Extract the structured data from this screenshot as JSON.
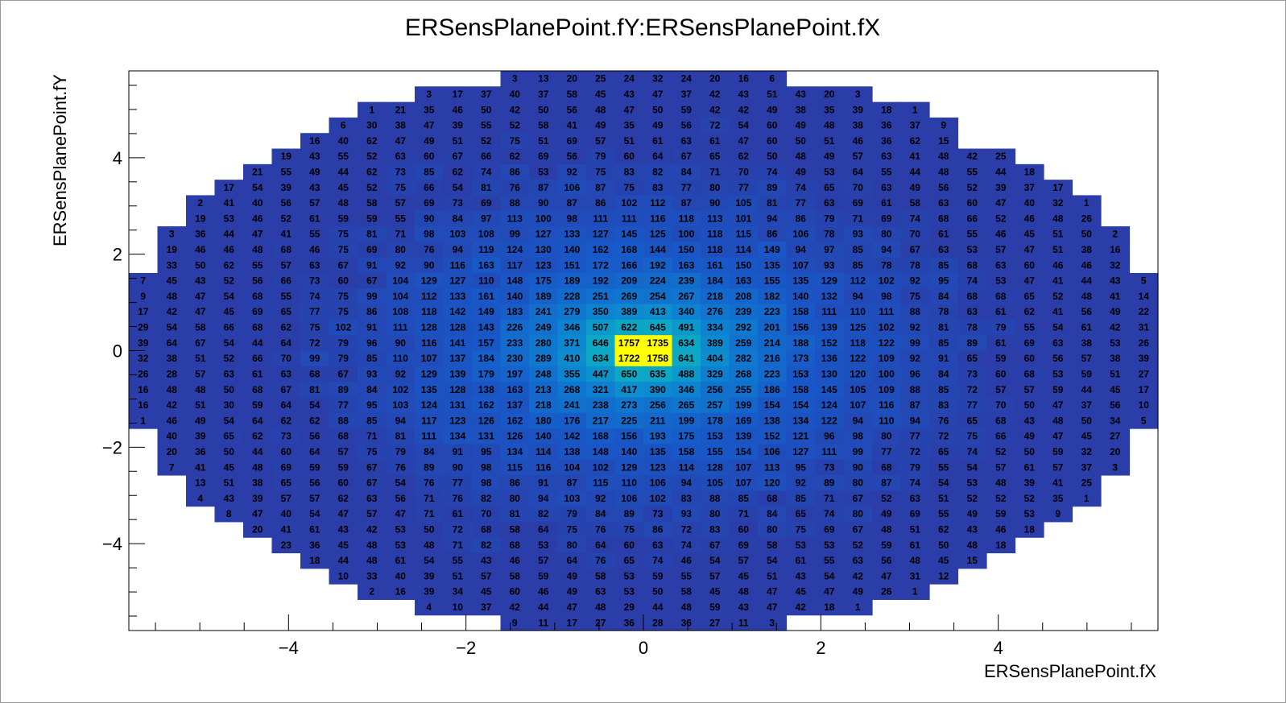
{
  "chart_data": {
    "type": "heatmap",
    "title": "ERSensPlanePoint.fY:ERSensPlanePoint.fX",
    "xlabel": "ERSensPlanePoint.fX",
    "ylabel": "ERSensPlanePoint.fY",
    "xlim": [
      -5.8,
      5.8
    ],
    "ylim": [
      -5.8,
      5.8
    ],
    "x_ticks": [
      "−4",
      "−2",
      "0",
      "2",
      "4"
    ],
    "y_ticks": [
      "−4",
      "−2",
      "0",
      "2",
      "4"
    ],
    "x_bin_edges": [
      -5.8,
      5.8
    ],
    "y_bin_edges": [
      -5.8,
      5.8
    ],
    "colors": {
      "low": "#2b3da8",
      "high": "#ffff00",
      "frame": "#000000"
    },
    "bin_rows_top_to_bottom": [
      [
        null,
        null,
        null,
        null,
        null,
        null,
        null,
        null,
        null,
        null,
        null,
        null,
        null,
        3,
        13,
        20,
        25,
        24,
        32,
        24,
        20,
        16,
        6,
        null,
        null,
        null,
        null,
        null,
        null,
        null,
        null,
        null,
        null,
        null,
        null,
        null
      ],
      [
        null,
        null,
        null,
        null,
        null,
        null,
        null,
        null,
        null,
        null,
        3,
        17,
        37,
        40,
        37,
        58,
        45,
        43,
        47,
        37,
        42,
        43,
        51,
        43,
        20,
        3,
        null,
        null,
        null,
        null,
        null,
        null,
        null,
        null,
        null,
        null
      ],
      [
        null,
        null,
        null,
        null,
        null,
        null,
        null,
        null,
        1,
        21,
        35,
        46,
        50,
        42,
        50,
        56,
        48,
        47,
        50,
        59,
        42,
        42,
        49,
        38,
        35,
        39,
        18,
        1,
        null,
        null,
        null,
        null,
        null,
        null,
        null,
        null
      ],
      [
        null,
        null,
        null,
        null,
        null,
        null,
        null,
        6,
        30,
        38,
        47,
        39,
        55,
        52,
        58,
        41,
        49,
        35,
        49,
        56,
        72,
        54,
        60,
        49,
        48,
        38,
        36,
        37,
        9,
        null,
        null,
        null,
        null,
        null,
        null,
        null
      ],
      [
        null,
        null,
        null,
        null,
        null,
        null,
        16,
        40,
        62,
        47,
        49,
        51,
        52,
        75,
        51,
        69,
        57,
        51,
        61,
        63,
        61,
        47,
        60,
        50,
        51,
        46,
        36,
        62,
        15,
        null,
        null,
        null,
        null,
        null,
        null,
        null
      ],
      [
        null,
        null,
        null,
        null,
        null,
        19,
        43,
        55,
        52,
        63,
        60,
        67,
        66,
        62,
        69,
        56,
        79,
        60,
        64,
        67,
        65,
        62,
        50,
        48,
        49,
        57,
        63,
        41,
        48,
        42,
        25,
        null,
        null,
        null,
        null,
        null
      ],
      [
        null,
        null,
        null,
        null,
        21,
        55,
        49,
        44,
        62,
        73,
        85,
        62,
        74,
        86,
        53,
        92,
        75,
        83,
        82,
        84,
        71,
        70,
        74,
        49,
        53,
        64,
        55,
        44,
        48,
        55,
        44,
        18,
        null,
        null,
        null,
        null
      ],
      [
        null,
        null,
        null,
        17,
        54,
        39,
        43,
        45,
        52,
        75,
        66,
        54,
        81,
        76,
        87,
        106,
        87,
        75,
        83,
        77,
        80,
        77,
        89,
        74,
        65,
        70,
        63,
        49,
        56,
        52,
        39,
        37,
        17,
        null,
        null,
        null
      ],
      [
        null,
        null,
        2,
        41,
        40,
        56,
        57,
        48,
        58,
        57,
        69,
        73,
        69,
        88,
        90,
        87,
        86,
        102,
        112,
        87,
        90,
        105,
        81,
        77,
        63,
        69,
        61,
        58,
        63,
        60,
        47,
        40,
        32,
        1,
        null,
        null
      ],
      [
        null,
        null,
        19,
        53,
        46,
        52,
        61,
        59,
        59,
        55,
        90,
        84,
        97,
        113,
        100,
        98,
        111,
        111,
        116,
        118,
        113,
        101,
        94,
        86,
        79,
        71,
        69,
        74,
        68,
        66,
        52,
        46,
        48,
        26,
        null,
        null
      ],
      [
        null,
        3,
        36,
        44,
        47,
        41,
        55,
        75,
        81,
        71,
        98,
        103,
        108,
        99,
        127,
        133,
        127,
        145,
        125,
        100,
        118,
        115,
        86,
        106,
        78,
        93,
        80,
        70,
        61,
        55,
        46,
        45,
        51,
        50,
        2,
        null
      ],
      [
        null,
        19,
        46,
        46,
        48,
        68,
        46,
        75,
        69,
        80,
        76,
        94,
        119,
        124,
        130,
        140,
        162,
        168,
        144,
        150,
        118,
        114,
        149,
        94,
        97,
        85,
        94,
        67,
        63,
        53,
        57,
        47,
        51,
        38,
        16,
        null
      ],
      [
        null,
        33,
        50,
        62,
        55,
        57,
        63,
        67,
        91,
        92,
        90,
        116,
        163,
        117,
        123,
        151,
        172,
        166,
        192,
        163,
        161,
        150,
        135,
        107,
        93,
        85,
        78,
        78,
        85,
        68,
        63,
        60,
        46,
        46,
        32,
        null
      ],
      [
        7,
        45,
        43,
        52,
        56,
        66,
        73,
        60,
        67,
        104,
        129,
        127,
        110,
        148,
        175,
        189,
        192,
        209,
        224,
        239,
        184,
        163,
        155,
        135,
        129,
        112,
        102,
        92,
        95,
        74,
        53,
        47,
        41,
        44,
        43,
        5
      ],
      [
        9,
        48,
        47,
        54,
        68,
        55,
        74,
        75,
        99,
        104,
        112,
        133,
        161,
        140,
        189,
        228,
        251,
        269,
        254,
        267,
        218,
        208,
        182,
        140,
        132,
        94,
        98,
        75,
        84,
        68,
        68,
        65,
        52,
        48,
        41,
        14
      ],
      [
        17,
        42,
        47,
        45,
        69,
        65,
        77,
        75,
        86,
        108,
        118,
        142,
        149,
        183,
        241,
        279,
        350,
        389,
        413,
        340,
        276,
        239,
        223,
        158,
        111,
        110,
        111,
        88,
        78,
        63,
        61,
        62,
        41,
        56,
        49,
        22
      ],
      [
        29,
        54,
        58,
        66,
        68,
        62,
        75,
        102,
        91,
        111,
        128,
        128,
        143,
        226,
        249,
        346,
        507,
        622,
        645,
        491,
        334,
        292,
        201,
        156,
        139,
        125,
        102,
        92,
        81,
        78,
        79,
        55,
        54,
        61,
        42,
        31
      ],
      [
        39,
        64,
        67,
        54,
        44,
        64,
        72,
        79,
        96,
        90,
        116,
        141,
        157,
        233,
        280,
        371,
        646,
        1757,
        1735,
        634,
        389,
        259,
        214,
        188,
        152,
        118,
        122,
        99,
        85,
        89,
        61,
        69,
        63,
        38,
        53,
        26
      ],
      [
        32,
        38,
        51,
        52,
        66,
        70,
        99,
        79,
        85,
        110,
        107,
        137,
        184,
        230,
        289,
        410,
        634,
        1722,
        1758,
        641,
        404,
        282,
        216,
        173,
        136,
        122,
        109,
        92,
        91,
        65,
        59,
        60,
        56,
        57,
        38,
        39
      ],
      [
        26,
        28,
        57,
        63,
        61,
        63,
        68,
        67,
        93,
        92,
        129,
        139,
        179,
        197,
        248,
        355,
        447,
        650,
        635,
        488,
        329,
        268,
        223,
        153,
        130,
        120,
        100,
        96,
        84,
        73,
        60,
        68,
        53,
        59,
        51,
        27
      ],
      [
        16,
        48,
        48,
        50,
        68,
        67,
        81,
        89,
        84,
        102,
        135,
        128,
        138,
        163,
        213,
        268,
        321,
        417,
        390,
        346,
        256,
        255,
        186,
        158,
        145,
        105,
        109,
        88,
        85,
        72,
        57,
        57,
        59,
        44,
        45,
        17
      ],
      [
        16,
        42,
        51,
        30,
        59,
        64,
        54,
        77,
        95,
        103,
        124,
        131,
        162,
        137,
        218,
        241,
        238,
        273,
        256,
        265,
        257,
        199,
        154,
        154,
        124,
        107,
        116,
        87,
        83,
        77,
        70,
        50,
        47,
        37,
        56,
        10
      ],
      [
        1,
        46,
        49,
        54,
        64,
        62,
        62,
        88,
        85,
        94,
        117,
        123,
        126,
        162,
        180,
        176,
        217,
        225,
        211,
        199,
        178,
        169,
        138,
        134,
        122,
        94,
        110,
        94,
        76,
        65,
        68,
        43,
        48,
        50,
        34,
        5
      ],
      [
        null,
        40,
        39,
        65,
        62,
        73,
        56,
        68,
        71,
        81,
        111,
        134,
        131,
        126,
        140,
        142,
        168,
        156,
        193,
        175,
        153,
        139,
        152,
        121,
        96,
        98,
        80,
        77,
        72,
        75,
        66,
        49,
        47,
        45,
        27,
        null
      ],
      [
        null,
        20,
        36,
        50,
        44,
        60,
        64,
        57,
        75,
        79,
        84,
        91,
        95,
        134,
        114,
        138,
        148,
        140,
        135,
        158,
        155,
        154,
        106,
        127,
        111,
        99,
        77,
        72,
        65,
        74,
        52,
        50,
        59,
        32,
        20,
        null
      ],
      [
        null,
        7,
        41,
        45,
        48,
        69,
        59,
        59,
        67,
        76,
        89,
        90,
        98,
        115,
        116,
        104,
        102,
        129,
        123,
        114,
        128,
        107,
        113,
        95,
        73,
        90,
        68,
        79,
        55,
        54,
        57,
        61,
        57,
        37,
        3,
        null
      ],
      [
        null,
        null,
        13,
        51,
        38,
        65,
        56,
        60,
        67,
        54,
        76,
        77,
        98,
        86,
        91,
        87,
        115,
        110,
        106,
        94,
        105,
        107,
        120,
        92,
        89,
        80,
        87,
        74,
        54,
        53,
        48,
        39,
        41,
        25,
        null,
        null
      ],
      [
        null,
        null,
        4,
        43,
        39,
        57,
        57,
        62,
        63,
        56,
        71,
        76,
        82,
        80,
        94,
        103,
        92,
        106,
        102,
        83,
        88,
        85,
        68,
        85,
        71,
        67,
        52,
        63,
        51,
        52,
        52,
        52,
        35,
        1,
        null,
        null
      ],
      [
        null,
        null,
        null,
        8,
        47,
        40,
        54,
        47,
        57,
        47,
        71,
        61,
        70,
        81,
        82,
        79,
        84,
        89,
        73,
        93,
        80,
        71,
        84,
        65,
        74,
        80,
        49,
        69,
        55,
        49,
        59,
        53,
        9,
        null,
        null,
        null
      ],
      [
        null,
        null,
        null,
        null,
        20,
        41,
        61,
        43,
        42,
        53,
        50,
        72,
        68,
        58,
        64,
        75,
        76,
        75,
        86,
        72,
        83,
        60,
        80,
        75,
        69,
        67,
        48,
        51,
        62,
        43,
        46,
        18,
        null,
        null,
        null,
        null
      ],
      [
        null,
        null,
        null,
        null,
        null,
        23,
        36,
        45,
        48,
        53,
        48,
        71,
        82,
        68,
        53,
        80,
        64,
        60,
        63,
        74,
        67,
        69,
        58,
        53,
        53,
        52,
        59,
        61,
        50,
        48,
        18,
        null,
        null,
        null,
        null,
        null
      ],
      [
        null,
        null,
        null,
        null,
        null,
        null,
        18,
        44,
        48,
        61,
        54,
        55,
        43,
        46,
        57,
        64,
        76,
        65,
        74,
        46,
        54,
        57,
        54,
        61,
        55,
        63,
        56,
        48,
        45,
        15,
        null,
        null,
        null,
        null,
        null,
        null
      ],
      [
        null,
        null,
        null,
        null,
        null,
        null,
        null,
        10,
        33,
        40,
        39,
        51,
        57,
        58,
        59,
        49,
        58,
        53,
        59,
        55,
        57,
        45,
        51,
        43,
        54,
        42,
        47,
        31,
        12,
        null,
        null,
        null,
        null,
        null,
        null,
        null
      ],
      [
        null,
        null,
        null,
        null,
        null,
        null,
        null,
        null,
        2,
        16,
        39,
        34,
        45,
        60,
        46,
        49,
        63,
        53,
        50,
        58,
        45,
        48,
        47,
        45,
        47,
        49,
        26,
        1,
        null,
        null,
        null,
        null,
        null,
        null,
        null,
        null
      ],
      [
        null,
        null,
        null,
        null,
        null,
        null,
        null,
        null,
        null,
        null,
        4,
        10,
        37,
        42,
        44,
        47,
        48,
        29,
        44,
        48,
        59,
        43,
        47,
        42,
        18,
        1,
        null,
        null,
        null,
        null,
        null,
        null,
        null,
        null,
        null,
        null
      ],
      [
        null,
        null,
        null,
        null,
        null,
        null,
        null,
        null,
        null,
        null,
        null,
        null,
        null,
        9,
        11,
        17,
        27,
        36,
        28,
        36,
        27,
        11,
        3,
        null,
        null,
        null,
        null,
        null,
        null,
        null,
        null,
        null,
        null,
        null,
        null,
        null
      ]
    ]
  }
}
